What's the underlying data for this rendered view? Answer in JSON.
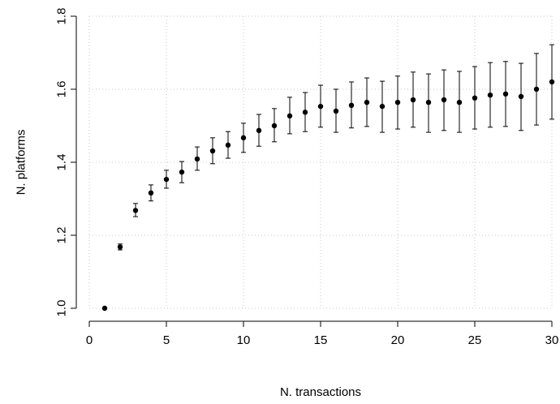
{
  "chart_data": {
    "type": "scatter",
    "title": "",
    "xlabel": "N. transactions",
    "ylabel": "N. platforms",
    "xlim": [
      0,
      30
    ],
    "ylim": [
      1.0,
      1.8
    ],
    "x_ticks": [
      0,
      5,
      10,
      15,
      20,
      25,
      30
    ],
    "x_tick_labels": [
      "0",
      "5",
      "10",
      "15",
      "20",
      "25",
      "30"
    ],
    "y_ticks": [
      1.0,
      1.2,
      1.4,
      1.6,
      1.8
    ],
    "y_tick_labels": [
      "1.0",
      "1.2",
      "1.4",
      "1.6",
      "1.8"
    ],
    "grid": true,
    "series": [
      {
        "x": [
          1,
          2,
          3,
          4,
          5,
          6,
          7,
          8,
          9,
          10,
          11,
          12,
          13,
          14,
          15,
          16,
          17,
          18,
          19,
          20,
          21,
          22,
          23,
          24,
          25,
          26,
          27,
          28,
          29,
          30
        ],
        "y": [
          1.0,
          1.168,
          1.268,
          1.316,
          1.353,
          1.373,
          1.409,
          1.431,
          1.447,
          1.467,
          1.487,
          1.5,
          1.527,
          1.537,
          1.553,
          1.54,
          1.556,
          1.564,
          1.553,
          1.564,
          1.571,
          1.564,
          1.571,
          1.564,
          1.576,
          1.584,
          1.587,
          1.58,
          1.6,
          1.62
        ],
        "y_lower": [
          1.0,
          1.16,
          1.251,
          1.294,
          1.329,
          1.344,
          1.378,
          1.396,
          1.411,
          1.427,
          1.444,
          1.456,
          1.478,
          1.484,
          1.496,
          1.482,
          1.494,
          1.498,
          1.482,
          1.491,
          1.496,
          1.482,
          1.487,
          1.482,
          1.491,
          1.496,
          1.498,
          1.487,
          1.502,
          1.518
        ],
        "y_upper": [
          1.0,
          1.176,
          1.287,
          1.338,
          1.378,
          1.402,
          1.442,
          1.467,
          1.484,
          1.507,
          1.531,
          1.547,
          1.578,
          1.591,
          1.611,
          1.6,
          1.62,
          1.631,
          1.622,
          1.636,
          1.647,
          1.642,
          1.653,
          1.649,
          1.662,
          1.673,
          1.676,
          1.671,
          1.698,
          1.722
        ]
      }
    ]
  }
}
